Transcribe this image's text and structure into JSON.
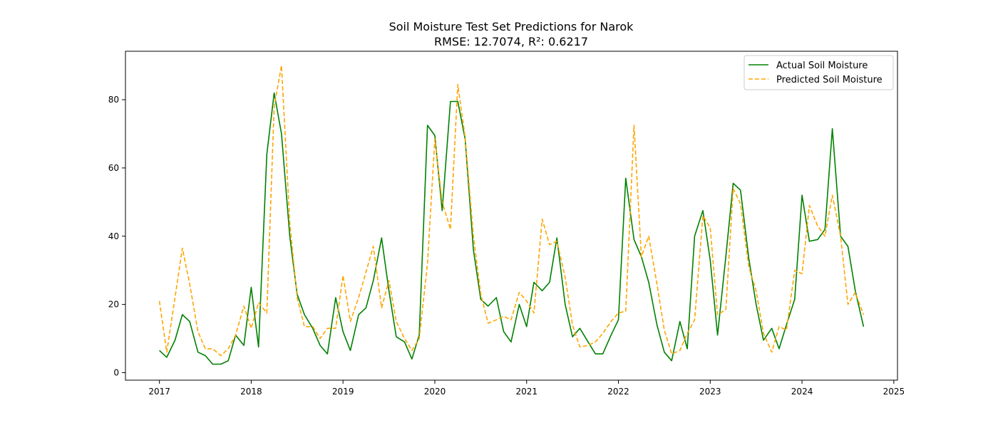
{
  "chart_data": {
    "type": "line",
    "title": "Soil Moisture Test Set Predictions for Narok",
    "subtitle": "RMSE: 12.7074, R²: 0.6217",
    "xlabel": "",
    "ylabel": "",
    "xlim": [
      2016.63,
      2025.04
    ],
    "ylim": [
      -2.2,
      94.2
    ],
    "x_ticks": [
      "2017",
      "2018",
      "2019",
      "2020",
      "2021",
      "2022",
      "2023",
      "2024",
      "2025"
    ],
    "y_ticks": [
      "0",
      "20",
      "40",
      "60",
      "80"
    ],
    "grid": false,
    "legend_position": "top-right",
    "series": [
      {
        "name": "Actual Soil Moisture",
        "color": "#008000",
        "style": "solid",
        "values": [
          {
            "x": 2017.0,
            "y": 6.5
          },
          {
            "x": 2017.08,
            "y": 4.5
          },
          {
            "x": 2017.17,
            "y": 9.5
          },
          {
            "x": 2017.25,
            "y": 17.0
          },
          {
            "x": 2017.33,
            "y": 15.0
          },
          {
            "x": 2017.42,
            "y": 6.0
          },
          {
            "x": 2017.5,
            "y": 5.0
          },
          {
            "x": 2017.58,
            "y": 2.5
          },
          {
            "x": 2017.67,
            "y": 2.5
          },
          {
            "x": 2017.75,
            "y": 3.5
          },
          {
            "x": 2017.83,
            "y": 11.0
          },
          {
            "x": 2017.92,
            "y": 8.0
          },
          {
            "x": 2018.0,
            "y": 25.0
          },
          {
            "x": 2018.08,
            "y": 7.5
          },
          {
            "x": 2018.17,
            "y": 64.0
          },
          {
            "x": 2018.25,
            "y": 82.0
          },
          {
            "x": 2018.33,
            "y": 70.0
          },
          {
            "x": 2018.42,
            "y": 40.0
          },
          {
            "x": 2018.5,
            "y": 23.0
          },
          {
            "x": 2018.58,
            "y": 17.0
          },
          {
            "x": 2018.67,
            "y": 13.0
          },
          {
            "x": 2018.75,
            "y": 8.0
          },
          {
            "x": 2018.83,
            "y": 5.5
          },
          {
            "x": 2018.92,
            "y": 22.0
          },
          {
            "x": 2019.0,
            "y": 12.0
          },
          {
            "x": 2019.08,
            "y": 6.5
          },
          {
            "x": 2019.17,
            "y": 17.0
          },
          {
            "x": 2019.25,
            "y": 19.0
          },
          {
            "x": 2019.33,
            "y": 27.0
          },
          {
            "x": 2019.42,
            "y": 39.5
          },
          {
            "x": 2019.5,
            "y": 24.0
          },
          {
            "x": 2019.58,
            "y": 10.5
          },
          {
            "x": 2019.67,
            "y": 9.0
          },
          {
            "x": 2019.75,
            "y": 4.0
          },
          {
            "x": 2019.83,
            "y": 11.0
          },
          {
            "x": 2019.92,
            "y": 72.5
          },
          {
            "x": 2020.0,
            "y": 69.5
          },
          {
            "x": 2020.08,
            "y": 47.5
          },
          {
            "x": 2020.17,
            "y": 79.5
          },
          {
            "x": 2020.25,
            "y": 79.5
          },
          {
            "x": 2020.33,
            "y": 68.5
          },
          {
            "x": 2020.42,
            "y": 36.0
          },
          {
            "x": 2020.5,
            "y": 21.5
          },
          {
            "x": 2020.58,
            "y": 19.5
          },
          {
            "x": 2020.67,
            "y": 22.0
          },
          {
            "x": 2020.75,
            "y": 12.0
          },
          {
            "x": 2020.83,
            "y": 9.0
          },
          {
            "x": 2020.92,
            "y": 20.0
          },
          {
            "x": 2021.0,
            "y": 13.5
          },
          {
            "x": 2021.08,
            "y": 26.5
          },
          {
            "x": 2021.17,
            "y": 24.0
          },
          {
            "x": 2021.25,
            "y": 26.5
          },
          {
            "x": 2021.33,
            "y": 39.5
          },
          {
            "x": 2021.42,
            "y": 20.0
          },
          {
            "x": 2021.5,
            "y": 10.5
          },
          {
            "x": 2021.58,
            "y": 13.0
          },
          {
            "x": 2021.67,
            "y": 9.0
          },
          {
            "x": 2021.75,
            "y": 5.5
          },
          {
            "x": 2021.83,
            "y": 5.5
          },
          {
            "x": 2021.92,
            "y": 11.0
          },
          {
            "x": 2022.0,
            "y": 15.5
          },
          {
            "x": 2022.08,
            "y": 57.0
          },
          {
            "x": 2022.17,
            "y": 39.0
          },
          {
            "x": 2022.25,
            "y": 34.0
          },
          {
            "x": 2022.33,
            "y": 26.5
          },
          {
            "x": 2022.42,
            "y": 14.0
          },
          {
            "x": 2022.5,
            "y": 6.0
          },
          {
            "x": 2022.58,
            "y": 3.5
          },
          {
            "x": 2022.67,
            "y": 15.0
          },
          {
            "x": 2022.75,
            "y": 7.0
          },
          {
            "x": 2022.83,
            "y": 40.0
          },
          {
            "x": 2022.92,
            "y": 47.5
          },
          {
            "x": 2023.0,
            "y": 33.0
          },
          {
            "x": 2023.08,
            "y": 11.0
          },
          {
            "x": 2023.17,
            "y": 34.0
          },
          {
            "x": 2023.25,
            "y": 55.5
          },
          {
            "x": 2023.33,
            "y": 53.5
          },
          {
            "x": 2023.42,
            "y": 33.5
          },
          {
            "x": 2023.5,
            "y": 20.0
          },
          {
            "x": 2023.58,
            "y": 9.5
          },
          {
            "x": 2023.67,
            "y": 13.0
          },
          {
            "x": 2023.75,
            "y": 7.0
          },
          {
            "x": 2023.83,
            "y": 14.0
          },
          {
            "x": 2023.92,
            "y": 21.5
          },
          {
            "x": 2024.0,
            "y": 52.0
          },
          {
            "x": 2024.08,
            "y": 38.5
          },
          {
            "x": 2024.17,
            "y": 39.0
          },
          {
            "x": 2024.25,
            "y": 42.0
          },
          {
            "x": 2024.33,
            "y": 71.5
          },
          {
            "x": 2024.42,
            "y": 40.0
          },
          {
            "x": 2024.5,
            "y": 37.0
          },
          {
            "x": 2024.58,
            "y": 24.0
          },
          {
            "x": 2024.67,
            "y": 13.5
          }
        ]
      },
      {
        "name": "Predicted Soil Moisture",
        "color": "#FFA500",
        "style": "dashed",
        "values": [
          {
            "x": 2017.0,
            "y": 21.0
          },
          {
            "x": 2017.08,
            "y": 6.0
          },
          {
            "x": 2017.17,
            "y": 22.0
          },
          {
            "x": 2017.25,
            "y": 36.5
          },
          {
            "x": 2017.33,
            "y": 26.0
          },
          {
            "x": 2017.42,
            "y": 12.0
          },
          {
            "x": 2017.5,
            "y": 7.0
          },
          {
            "x": 2017.58,
            "y": 7.0
          },
          {
            "x": 2017.67,
            "y": 5.0
          },
          {
            "x": 2017.75,
            "y": 7.0
          },
          {
            "x": 2017.83,
            "y": 11.0
          },
          {
            "x": 2017.92,
            "y": 19.5
          },
          {
            "x": 2018.0,
            "y": 13.0
          },
          {
            "x": 2018.08,
            "y": 20.5
          },
          {
            "x": 2018.17,
            "y": 17.5
          },
          {
            "x": 2018.25,
            "y": 78.0
          },
          {
            "x": 2018.33,
            "y": 90.0
          },
          {
            "x": 2018.42,
            "y": 44.0
          },
          {
            "x": 2018.5,
            "y": 22.0
          },
          {
            "x": 2018.58,
            "y": 13.5
          },
          {
            "x": 2018.67,
            "y": 13.5
          },
          {
            "x": 2018.75,
            "y": 10.0
          },
          {
            "x": 2018.83,
            "y": 13.0
          },
          {
            "x": 2018.92,
            "y": 13.0
          },
          {
            "x": 2019.0,
            "y": 28.5
          },
          {
            "x": 2019.08,
            "y": 15.0
          },
          {
            "x": 2019.17,
            "y": 22.0
          },
          {
            "x": 2019.25,
            "y": 29.5
          },
          {
            "x": 2019.33,
            "y": 37.0
          },
          {
            "x": 2019.42,
            "y": 19.0
          },
          {
            "x": 2019.5,
            "y": 27.0
          },
          {
            "x": 2019.58,
            "y": 15.0
          },
          {
            "x": 2019.67,
            "y": 10.0
          },
          {
            "x": 2019.75,
            "y": 6.5
          },
          {
            "x": 2019.83,
            "y": 10.0
          },
          {
            "x": 2019.92,
            "y": 32.0
          },
          {
            "x": 2020.0,
            "y": 68.5
          },
          {
            "x": 2020.08,
            "y": 50.0
          },
          {
            "x": 2020.17,
            "y": 42.0
          },
          {
            "x": 2020.25,
            "y": 84.5
          },
          {
            "x": 2020.33,
            "y": 69.0
          },
          {
            "x": 2020.42,
            "y": 40.0
          },
          {
            "x": 2020.5,
            "y": 23.0
          },
          {
            "x": 2020.58,
            "y": 14.5
          },
          {
            "x": 2020.67,
            "y": 15.5
          },
          {
            "x": 2020.75,
            "y": 16.5
          },
          {
            "x": 2020.83,
            "y": 15.5
          },
          {
            "x": 2020.92,
            "y": 23.5
          },
          {
            "x": 2021.0,
            "y": 21.0
          },
          {
            "x": 2021.08,
            "y": 17.5
          },
          {
            "x": 2021.17,
            "y": 45.0
          },
          {
            "x": 2021.25,
            "y": 37.5
          },
          {
            "x": 2021.33,
            "y": 38.5
          },
          {
            "x": 2021.42,
            "y": 28.0
          },
          {
            "x": 2021.5,
            "y": 14.0
          },
          {
            "x": 2021.58,
            "y": 7.5
          },
          {
            "x": 2021.67,
            "y": 8.0
          },
          {
            "x": 2021.75,
            "y": 9.0
          },
          {
            "x": 2021.83,
            "y": 11.5
          },
          {
            "x": 2021.92,
            "y": 15.0
          },
          {
            "x": 2022.0,
            "y": 17.5
          },
          {
            "x": 2022.08,
            "y": 18.0
          },
          {
            "x": 2022.17,
            "y": 72.5
          },
          {
            "x": 2022.25,
            "y": 34.0
          },
          {
            "x": 2022.33,
            "y": 40.0
          },
          {
            "x": 2022.42,
            "y": 26.0
          },
          {
            "x": 2022.5,
            "y": 12.5
          },
          {
            "x": 2022.58,
            "y": 5.5
          },
          {
            "x": 2022.67,
            "y": 6.5
          },
          {
            "x": 2022.75,
            "y": 11.5
          },
          {
            "x": 2022.83,
            "y": 15.5
          },
          {
            "x": 2022.92,
            "y": 46.0
          },
          {
            "x": 2023.0,
            "y": 42.5
          },
          {
            "x": 2023.08,
            "y": 17.0
          },
          {
            "x": 2023.17,
            "y": 18.5
          },
          {
            "x": 2023.25,
            "y": 54.0
          },
          {
            "x": 2023.33,
            "y": 49.5
          },
          {
            "x": 2023.42,
            "y": 31.0
          },
          {
            "x": 2023.5,
            "y": 24.0
          },
          {
            "x": 2023.58,
            "y": 11.5
          },
          {
            "x": 2023.67,
            "y": 6.0
          },
          {
            "x": 2023.75,
            "y": 13.5
          },
          {
            "x": 2023.83,
            "y": 12.5
          },
          {
            "x": 2023.92,
            "y": 30.0
          },
          {
            "x": 2024.0,
            "y": 29.0
          },
          {
            "x": 2024.08,
            "y": 49.0
          },
          {
            "x": 2024.17,
            "y": 43.0
          },
          {
            "x": 2024.25,
            "y": 40.0
          },
          {
            "x": 2024.33,
            "y": 52.0
          },
          {
            "x": 2024.42,
            "y": 40.0
          },
          {
            "x": 2024.5,
            "y": 20.0
          },
          {
            "x": 2024.58,
            "y": 23.5
          },
          {
            "x": 2024.67,
            "y": 17.0
          }
        ]
      }
    ]
  }
}
